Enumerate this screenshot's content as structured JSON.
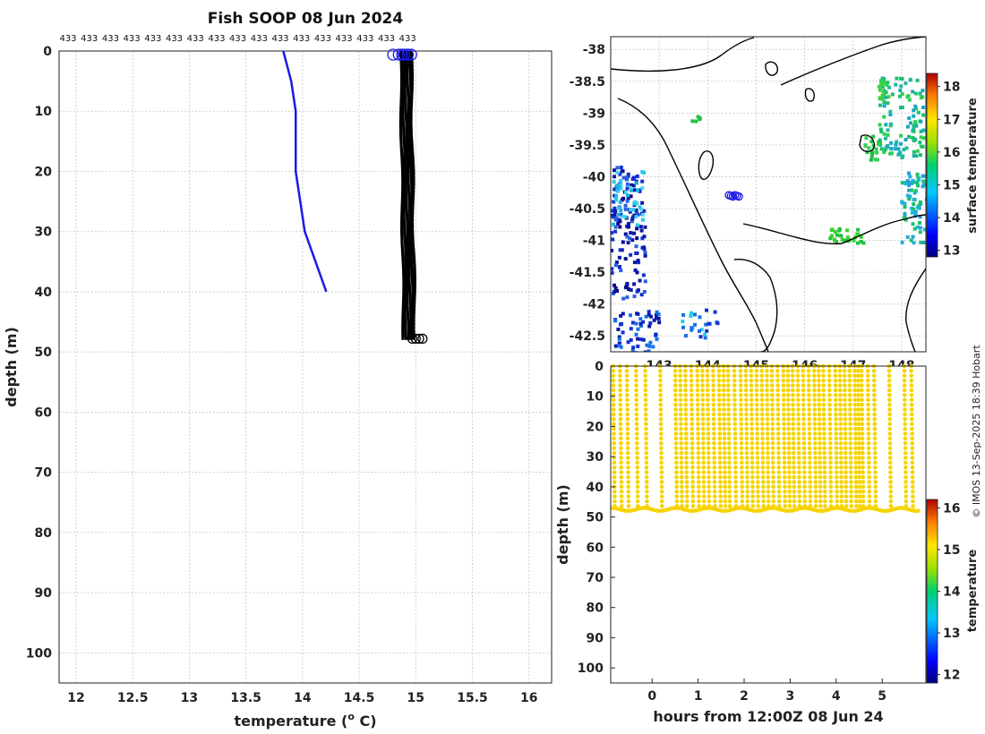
{
  "chart_data": [
    {
      "id": "profile",
      "type": "line",
      "title": "Fish SOOP 08 Jun 2024",
      "xlabel": "temperature (°C)",
      "xlabel_main": "temperature (",
      "xlabel_sup": "o",
      "xlabel_tail": " C)",
      "ylabel": "depth (m)",
      "xlim": [
        11.85,
        16.2
      ],
      "ylim": [
        105,
        0
      ],
      "xticks": [
        "12",
        "12.5",
        "13",
        "13.5",
        "14",
        "14.5",
        "15",
        "15.5",
        "16"
      ],
      "xtick_values": [
        12,
        12.5,
        13,
        13.5,
        14,
        14.5,
        15,
        15.5,
        16
      ],
      "yticks": [
        "0",
        "10",
        "20",
        "30",
        "40",
        "50",
        "60",
        "70",
        "80",
        "90",
        "100"
      ],
      "ytick_values": [
        0,
        10,
        20,
        30,
        40,
        50,
        60,
        70,
        80,
        90,
        100
      ],
      "top_labels": [
        "433",
        "433",
        "433",
        "433",
        "433",
        "433",
        "433",
        "433",
        "433",
        "433",
        "433",
        "433",
        "433",
        "433",
        "433",
        "433",
        "433"
      ],
      "series": [
        {
          "name": "climatology",
          "color": "#1a1ae6",
          "points": [
            [
              13.83,
              0
            ],
            [
              13.9,
              5
            ],
            [
              13.94,
              10
            ],
            [
              13.94,
              20
            ],
            [
              14.02,
              30
            ],
            [
              14.21,
              40
            ]
          ]
        },
        {
          "name": "casts",
          "color": "#000000",
          "x_ranges": [
            [
              14.86,
              14.9
            ],
            [
              14.88,
              14.92
            ],
            [
              14.9,
              14.94
            ],
            [
              14.92,
              14.96
            ],
            [
              14.94,
              14.98
            ],
            [
              14.95,
              15.0
            ]
          ],
          "depth_max": 48
        }
      ],
      "surface_markers_x": [
        14.8,
        14.85,
        14.88,
        14.9,
        14.93,
        14.96
      ],
      "bottom_markers_x": [
        14.97,
        15.0,
        15.03,
        15.06
      ]
    },
    {
      "id": "map",
      "type": "heatmap",
      "ylim": [
        -42.75,
        -37.8
      ],
      "yticks": [
        "-38",
        "-38.5",
        "-39",
        "-39.5",
        "-40",
        "-40.5",
        "-41",
        "-41.5",
        "-42",
        "-42.5"
      ],
      "ytick_values": [
        -38,
        -38.5,
        -39,
        -39.5,
        -40,
        -40.5,
        -41,
        -41.5,
        -42,
        -42.5
      ],
      "xticks": [
        "143",
        "144",
        "145",
        "146",
        "147",
        "148"
      ],
      "xlim": [
        142.0,
        148.5
      ],
      "colorbar_label": "surface temperature",
      "colorbar_ticks": [
        "13",
        "14",
        "15",
        "16",
        "17",
        "18"
      ],
      "colorbar_range": [
        12.8,
        18.4
      ],
      "vessel_position": [
        144.55,
        -40.3
      ]
    },
    {
      "id": "timeseries",
      "type": "scatter",
      "xlabel": "hours from 12:00Z 08 Jun 24",
      "ylabel": "depth (m)",
      "xlim": [
        -0.9,
        5.95
      ],
      "ylim": [
        105,
        0
      ],
      "xticks": [
        "0",
        "1",
        "2",
        "3",
        "4",
        "5"
      ],
      "xtick_values": [
        0,
        1,
        2,
        3,
        4,
        5
      ],
      "yticks": [
        "0",
        "10",
        "20",
        "30",
        "40",
        "50",
        "60",
        "70",
        "80",
        "90",
        "100"
      ],
      "ytick_values": [
        0,
        10,
        20,
        30,
        40,
        50,
        60,
        70,
        80,
        90,
        100
      ],
      "colorbar_label": "temperature",
      "colorbar_ticks": [
        "12",
        "13",
        "14",
        "15",
        "16"
      ],
      "colorbar_range": [
        11.8,
        16.2
      ],
      "cast_x": [
        -0.85,
        -0.55,
        -0.15,
        0.5,
        0.72,
        0.98,
        1.2,
        1.45,
        1.65,
        1.92,
        2.15,
        2.38,
        2.6,
        2.85,
        3.05,
        3.28,
        3.52,
        3.72,
        3.98,
        4.18,
        4.4,
        4.55,
        4.82,
        5.48,
        5.78
      ],
      "point_color": "#f5d400"
    }
  ],
  "credit": "© IMOS 13-Sep-2025 18:39 Hobart"
}
